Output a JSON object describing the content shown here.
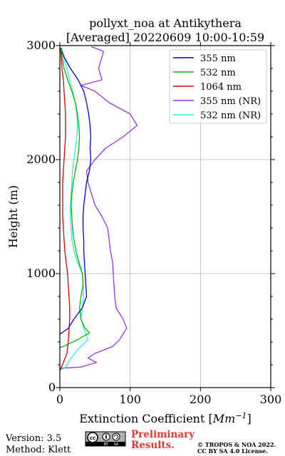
{
  "chart_data": {
    "type": "line",
    "title_line1": "pollyxt_noa at Antikythera",
    "title_line2": "[Averaged] 20220609 10:00-10:59",
    "xlabel": "Extinction Coefficient [",
    "xlabel_unit": "Mm",
    "xlabel_exp": "−1",
    "xlabel_close": "]",
    "ylabel": "Height (m)",
    "xlim": [
      0,
      300
    ],
    "ylim": [
      0,
      3000
    ],
    "xticks": [
      "0",
      "100",
      "200",
      "300"
    ],
    "yticks": [
      "0",
      "1000",
      "2000",
      "3000"
    ],
    "grid": true,
    "legend_position": "top-right",
    "series": [
      {
        "name": "355 nm",
        "color": "#0000dd",
        "points": [
          [
            0,
            470
          ],
          [
            5,
            490
          ],
          [
            12,
            520
          ],
          [
            20,
            600
          ],
          [
            32,
            700
          ],
          [
            38,
            800
          ],
          [
            37,
            900
          ],
          [
            36,
            1000
          ],
          [
            35,
            1100
          ],
          [
            34,
            1200
          ],
          [
            34,
            1300
          ],
          [
            33,
            1400
          ],
          [
            33,
            1500
          ],
          [
            34,
            1600
          ],
          [
            36,
            1700
          ],
          [
            38,
            1800
          ],
          [
            42,
            1900
          ],
          [
            44,
            2000
          ],
          [
            43,
            2100
          ],
          [
            44,
            2200
          ],
          [
            43,
            2300
          ],
          [
            41,
            2400
          ],
          [
            38,
            2500
          ],
          [
            34,
            2600
          ],
          [
            26,
            2700
          ],
          [
            15,
            2800
          ],
          [
            6,
            2900
          ],
          [
            3,
            2950
          ]
        ]
      },
      {
        "name": "532 nm",
        "color": "#00bb00",
        "points": [
          [
            0,
            350
          ],
          [
            8,
            370
          ],
          [
            25,
            420
          ],
          [
            42,
            480
          ],
          [
            35,
            530
          ],
          [
            30,
            600
          ],
          [
            28,
            700
          ],
          [
            30,
            800
          ],
          [
            33,
            900
          ],
          [
            32,
            1000
          ],
          [
            27,
            1100
          ],
          [
            23,
            1200
          ],
          [
            20,
            1300
          ],
          [
            18,
            1400
          ],
          [
            17,
            1500
          ],
          [
            16,
            1600
          ],
          [
            17,
            1700
          ],
          [
            19,
            1800
          ],
          [
            22,
            1900
          ],
          [
            25,
            2000
          ],
          [
            27,
            2100
          ],
          [
            28,
            2200
          ],
          [
            27,
            2300
          ],
          [
            25,
            2400
          ],
          [
            22,
            2500
          ],
          [
            17,
            2600
          ],
          [
            11,
            2700
          ],
          [
            6,
            2800
          ],
          [
            3,
            2900
          ],
          [
            2,
            2980
          ]
        ]
      },
      {
        "name": "1064 nm",
        "color": "#dd0000",
        "points": [
          [
            0,
            150
          ],
          [
            5,
            220
          ],
          [
            10,
            300
          ],
          [
            12,
            400
          ],
          [
            13,
            500
          ],
          [
            14,
            600
          ],
          [
            14,
            700
          ],
          [
            13,
            800
          ],
          [
            12,
            900
          ],
          [
            11,
            1000
          ],
          [
            9,
            1100
          ],
          [
            7,
            1200
          ],
          [
            6,
            1300
          ],
          [
            5,
            1400
          ],
          [
            4,
            1500
          ],
          [
            4,
            1600
          ],
          [
            4,
            1700
          ],
          [
            4,
            1800
          ],
          [
            5,
            1900
          ],
          [
            6,
            2000
          ],
          [
            7,
            2100
          ],
          [
            8,
            2200
          ],
          [
            8,
            2300
          ],
          [
            8,
            2400
          ],
          [
            7,
            2500
          ],
          [
            6,
            2600
          ],
          [
            5,
            2700
          ],
          [
            3,
            2800
          ],
          [
            2,
            2900
          ],
          [
            1,
            2980
          ]
        ]
      },
      {
        "name": "355 nm (NR)",
        "color": "#9933ee",
        "points": [
          [
            0,
            170
          ],
          [
            30,
            180
          ],
          [
            52,
            220
          ],
          [
            40,
            260
          ],
          [
            50,
            300
          ],
          [
            75,
            360
          ],
          [
            85,
            420
          ],
          [
            95,
            520
          ],
          [
            90,
            600
          ],
          [
            80,
            700
          ],
          [
            78,
            800
          ],
          [
            77,
            900
          ],
          [
            76,
            1000
          ],
          [
            75,
            1100
          ],
          [
            72,
            1200
          ],
          [
            70,
            1300
          ],
          [
            68,
            1400
          ],
          [
            60,
            1500
          ],
          [
            50,
            1600
          ],
          [
            45,
            1700
          ],
          [
            40,
            1800
          ],
          [
            38,
            1900
          ],
          [
            50,
            2000
          ],
          [
            65,
            2100
          ],
          [
            90,
            2200
          ],
          [
            110,
            2300
          ],
          [
            100,
            2400
          ],
          [
            70,
            2500
          ],
          [
            50,
            2600
          ],
          [
            30,
            2650
          ],
          [
            60,
            2700
          ],
          [
            55,
            2800
          ],
          [
            60,
            2900
          ],
          [
            62,
            2950
          ],
          [
            45,
            2990
          ]
        ]
      },
      {
        "name": "532 nm (NR)",
        "color": "#33eedd",
        "points": [
          [
            0,
            150
          ],
          [
            8,
            180
          ],
          [
            15,
            250
          ],
          [
            25,
            330
          ],
          [
            40,
            420
          ],
          [
            35,
            500
          ],
          [
            30,
            600
          ],
          [
            32,
            700
          ],
          [
            34,
            800
          ],
          [
            33,
            900
          ],
          [
            32,
            1000
          ],
          [
            25,
            1100
          ],
          [
            20,
            1200
          ],
          [
            17,
            1300
          ],
          [
            16,
            1400
          ],
          [
            15,
            1500
          ],
          [
            15,
            1600
          ],
          [
            16,
            1700
          ],
          [
            17,
            1800
          ],
          [
            18,
            1900
          ],
          [
            20,
            2000
          ],
          [
            22,
            2100
          ],
          [
            24,
            2200
          ],
          [
            25,
            2300
          ],
          [
            24,
            2400
          ],
          [
            22,
            2500
          ],
          [
            18,
            2600
          ],
          [
            14,
            2700
          ],
          [
            10,
            2800
          ],
          [
            5,
            2900
          ],
          [
            3,
            2980
          ]
        ]
      }
    ]
  },
  "footer": {
    "version": "Version: 3.5",
    "method": "Method: Klett",
    "preliminary_line1": "Preliminary",
    "preliminary_line2": "Results.",
    "credit_line1": "© TROPOS & NOA 2022.",
    "credit_line2": "CC BY SA 4.0 License."
  },
  "colors": {
    "grid": "#b0b0b0",
    "preliminary": "#ee3333"
  },
  "icons": {
    "license_badge": "cc-by-sa-icon"
  }
}
